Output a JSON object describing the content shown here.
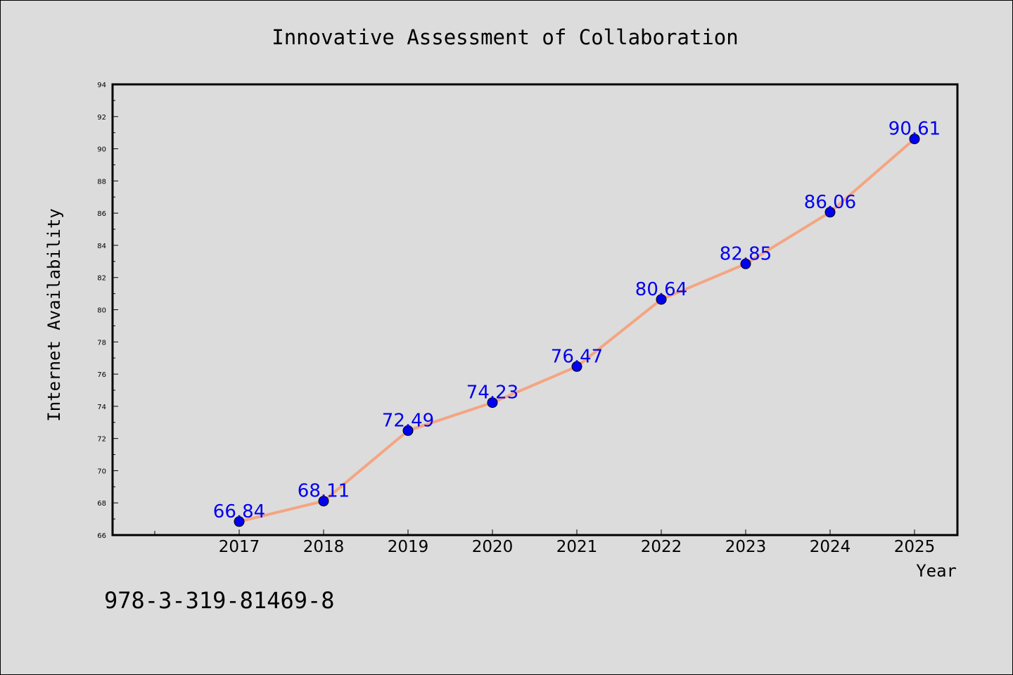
{
  "footer_code": "978-3-319-81469-8",
  "chart_data": {
    "type": "line",
    "title": "Innovative Assessment of Collaboration",
    "xlabel": "Year",
    "ylabel": "Internet Availability",
    "categories": [
      "2017",
      "2018",
      "2019",
      "2020",
      "2021",
      "2022",
      "2023",
      "2024",
      "2025"
    ],
    "series": [
      {
        "values": [
          66.84,
          68.11,
          72.49,
          74.23,
          76.47,
          80.64,
          82.85,
          86.06,
          90.61
        ],
        "labels": [
          "66.84",
          "68.11",
          "72.49",
          "74.23",
          "76.47",
          "80.64",
          "82.85",
          "86.06",
          "90.61"
        ],
        "line_color": "#f4a582",
        "marker_color": "#0000ee"
      }
    ],
    "ylim": [
      66,
      94
    ],
    "yticks": [
      66,
      68,
      70,
      72,
      74,
      76,
      78,
      80,
      82,
      84,
      86,
      88,
      90,
      92,
      94
    ],
    "grid": false,
    "legend": "none"
  }
}
